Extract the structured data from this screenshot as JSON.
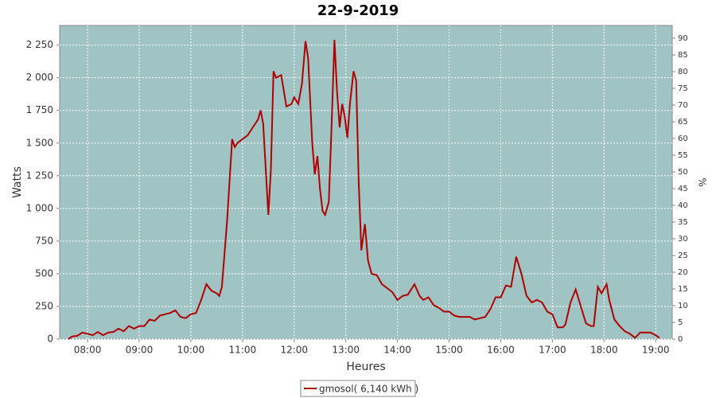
{
  "chart_data": {
    "type": "line",
    "title": "22-9-2019",
    "x_label": "Heures",
    "y_label": "Watts",
    "y2_label": "%",
    "x": [
      7.63,
      7.7,
      7.8,
      7.9,
      8.0,
      8.1,
      8.2,
      8.3,
      8.4,
      8.5,
      8.6,
      8.7,
      8.8,
      8.9,
      9.0,
      9.1,
      9.2,
      9.3,
      9.4,
      9.5,
      9.6,
      9.7,
      9.8,
      9.9,
      10.0,
      10.1,
      10.2,
      10.3,
      10.4,
      10.5,
      10.55,
      10.6,
      10.7,
      10.8,
      10.85,
      10.9,
      11.0,
      11.1,
      11.2,
      11.3,
      11.35,
      11.4,
      11.5,
      11.55,
      11.6,
      11.65,
      11.75,
      11.85,
      11.95,
      12.0,
      12.08,
      12.15,
      12.22,
      12.27,
      12.35,
      12.4,
      12.45,
      12.5,
      12.55,
      12.6,
      12.67,
      12.73,
      12.78,
      12.83,
      12.88,
      12.93,
      12.98,
      13.03,
      13.08,
      13.15,
      13.2,
      13.25,
      13.3,
      13.37,
      13.43,
      13.5,
      13.6,
      13.7,
      13.8,
      13.9,
      14.0,
      14.1,
      14.2,
      14.33,
      14.43,
      14.5,
      14.6,
      14.7,
      14.8,
      14.9,
      15.0,
      15.1,
      15.2,
      15.3,
      15.4,
      15.5,
      15.6,
      15.7,
      15.8,
      15.9,
      16.0,
      16.1,
      16.2,
      16.3,
      16.4,
      16.5,
      16.6,
      16.7,
      16.8,
      16.9,
      17.0,
      17.1,
      17.2,
      17.25,
      17.35,
      17.45,
      17.55,
      17.65,
      17.75,
      17.8,
      17.88,
      17.95,
      18.05,
      18.1,
      18.2,
      18.3,
      18.4,
      18.5,
      18.6,
      18.7,
      18.8,
      18.9,
      19.0,
      19.07
    ],
    "series": [
      {
        "name": "gmosol( 6,140 kWh )",
        "color": "#b00000",
        "values": [
          0,
          20,
          25,
          50,
          40,
          30,
          55,
          30,
          50,
          55,
          80,
          60,
          100,
          80,
          100,
          100,
          150,
          140,
          180,
          190,
          200,
          220,
          170,
          160,
          190,
          200,
          300,
          420,
          370,
          350,
          330,
          400,
          900,
          1530,
          1470,
          1500,
          1530,
          1560,
          1620,
          1680,
          1750,
          1650,
          950,
          1300,
          2050,
          2000,
          2020,
          1780,
          1800,
          1850,
          1800,
          1950,
          2280,
          2150,
          1500,
          1260,
          1400,
          1150,
          980,
          950,
          1050,
          1700,
          2290,
          1900,
          1620,
          1800,
          1700,
          1540,
          1800,
          2050,
          1980,
          1200,
          680,
          880,
          600,
          500,
          490,
          420,
          390,
          360,
          300,
          330,
          340,
          420,
          330,
          300,
          320,
          260,
          240,
          210,
          210,
          180,
          170,
          170,
          170,
          150,
          160,
          170,
          230,
          320,
          320,
          410,
          400,
          630,
          500,
          330,
          280,
          300,
          280,
          210,
          190,
          90,
          90,
          110,
          280,
          380,
          250,
          120,
          100,
          100,
          400,
          350,
          420,
          300,
          150,
          100,
          60,
          40,
          10,
          50,
          50,
          50,
          30,
          10
        ]
      }
    ],
    "xlim": [
      7.46,
      19.32
    ],
    "xticks": [
      {
        "value": 8,
        "label": "08:00"
      },
      {
        "value": 9,
        "label": "09:00"
      },
      {
        "value": 10,
        "label": "10:00"
      },
      {
        "value": 11,
        "label": "11:00"
      },
      {
        "value": 12,
        "label": "12:00"
      },
      {
        "value": 13,
        "label": "13:00"
      },
      {
        "value": 14,
        "label": "14:00"
      },
      {
        "value": 15,
        "label": "15:00"
      },
      {
        "value": 16,
        "label": "16:00"
      },
      {
        "value": 17,
        "label": "17:00"
      },
      {
        "value": 18,
        "label": "18:00"
      },
      {
        "value": 19,
        "label": "19:00"
      }
    ],
    "ylim": [
      0,
      2400
    ],
    "yticks": [
      0,
      250,
      500,
      750,
      {
        "value": 1000,
        "label": "1 000"
      },
      {
        "value": 1250,
        "label": "1 250"
      },
      {
        "value": 1500,
        "label": "1 500"
      },
      {
        "value": 1750,
        "label": "1 750"
      },
      {
        "value": 2000,
        "label": "2 000"
      },
      {
        "value": 2250,
        "label": "2 250"
      }
    ],
    "y2lim": [
      0,
      93.8
    ],
    "y2ticks": [
      0,
      5,
      10,
      15,
      20,
      25,
      30,
      35,
      40,
      45,
      50,
      55,
      60,
      65,
      70,
      75,
      80,
      85,
      90
    ],
    "grid": true,
    "background": "#a0c4c4",
    "legend": "bottom"
  }
}
